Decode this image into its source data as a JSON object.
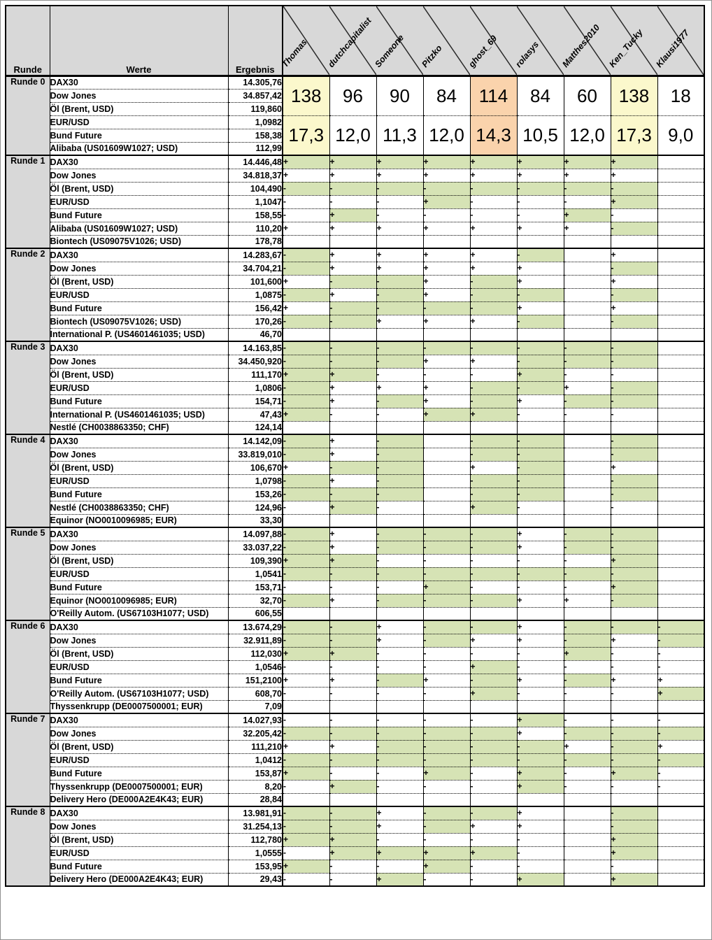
{
  "header": {
    "col_runde": "Runde",
    "col_werte": "Werte",
    "col_ergebnis": "Ergebnis",
    "players": [
      "Thomas",
      "dutchcapitalist",
      "Someone",
      "Pitzko",
      "ghost_69",
      "rolasys",
      "Matthes2010",
      "Ken_Tucky",
      "Klausi1977"
    ]
  },
  "colors": {
    "header_bg": "#d8d8d8",
    "correct_bg": "#d6e3b5",
    "leader_bg": "#fbf8cc",
    "third_bg": "#fad3ac",
    "border": "#000000"
  },
  "scores": {
    "points": [
      "138",
      "96",
      "90",
      "84",
      "114",
      "84",
      "60",
      "138",
      "18"
    ],
    "avg": [
      "17,3",
      "12,0",
      "11,3",
      "12,0",
      "14,3",
      "10,5",
      "12,0",
      "17,3",
      "9,0"
    ],
    "highlight": [
      "y",
      "",
      "",
      "",
      "o",
      "",
      "",
      "y",
      ""
    ]
  },
  "legend": {
    "plus": "+",
    "minus": "-"
  },
  "rounds": [
    {
      "label": "Runde 0",
      "has_scores": true,
      "rows": [
        [
          "DAX30",
          "14.305,76"
        ],
        [
          "Dow Jones",
          "34.857,42"
        ],
        [
          "Öl (Brent, USD)",
          "119,860"
        ],
        [
          "EUR/USD",
          "1,0982"
        ],
        [
          "Bund Future",
          "158,38"
        ],
        [
          "Alibaba (US01609W1027; USD)",
          "112,99"
        ]
      ]
    },
    {
      "label": "Runde 1",
      "rows": [
        [
          "DAX30",
          "14.446,48",
          "+g +g +g +g +g +g +g +g ."
        ],
        [
          "Dow Jones",
          "34.818,37",
          "+w +w +w +w +w +w +w +w ."
        ],
        [
          "Öl (Brent, USD)",
          "104,490",
          "-g -g -g -g -g -g -g -g ."
        ],
        [
          "EUR/USD",
          "1,1047",
          "-w -w -w +g -w -w -w +g ."
        ],
        [
          "Bund Future",
          "158,55",
          "-w +g -w -w -w -w +g -w ."
        ],
        [
          "Alibaba (US01609W1027; USD)",
          "110,20",
          "+w +w +w +w +w +w +w -g ."
        ],
        [
          "Biontech (US09075V1026; USD)",
          "178,78",
          ". . . . . . . . ."
        ]
      ]
    },
    {
      "label": "Runde 2",
      "rows": [
        [
          "DAX30",
          "14.283,67",
          "-g +w +w +w +w -g . +w ."
        ],
        [
          "Dow Jones",
          "34.704,21",
          "-g +w +w +w +w +w . -g ."
        ],
        [
          "Öl (Brent, USD)",
          "101,600",
          "+w -g -g +w -g +w . +w ."
        ],
        [
          "EUR/USD",
          "1,0875",
          "-g +w -g +w -g -g . -g ."
        ],
        [
          "Bund Future",
          "156,42",
          "+w -g -g -g -g +w . +w ."
        ],
        [
          "Biontech (US09075V1026; USD)",
          "170,26",
          "-g -g +w +w +w -g . -g ."
        ],
        [
          "International P. (US4601461035; USD)",
          "46,70",
          ". . . . . . . . ."
        ]
      ]
    },
    {
      "label": "Runde 3",
      "rows": [
        [
          "DAX30",
          "14.163,85",
          "-g -g -g -g -g -g -g -g ."
        ],
        [
          "Dow Jones",
          "34.450,920",
          "-g -g -g +w +w -g -g -g ."
        ],
        [
          "Öl (Brent, USD)",
          "111,170",
          "+g +g -w -w -w +g -w -w ."
        ],
        [
          "EUR/USD",
          "1,0806",
          "-g +w +w +w -g -g +w -g ."
        ],
        [
          "Bund Future",
          "154,71",
          "-g +w -g +w -g +w -g -g ."
        ],
        [
          "International P. (US4601461035; USD)",
          "47,43",
          "+g -w -w +g +g -w -w -w ."
        ],
        [
          "Nestlé (CH0038863350; CHF)",
          "124,14",
          ". . . . . . . . ."
        ]
      ]
    },
    {
      "label": "Runde 4",
      "rows": [
        [
          "DAX30",
          "14.142,09",
          "-g +w -g . -g -g . -g ."
        ],
        [
          "Dow Jones",
          "33.819,010",
          "-g +w -g . -g -g . -g ."
        ],
        [
          "Öl (Brent, USD)",
          "106,670",
          "+w -g -g . +w -g . +w ."
        ],
        [
          "EUR/USD",
          "1,0798",
          "-g +w -g . -g -g . -g ."
        ],
        [
          "Bund Future",
          "153,26",
          "-g -g -g . -g -g . -g ."
        ],
        [
          "Nestlé (CH0038863350; CHF)",
          "124,96",
          "-w +g -w . +g -w . -w ."
        ],
        [
          "Equinor (NO0010096985; EUR)",
          "33,30",
          ". . . . . . . . ."
        ]
      ]
    },
    {
      "label": "Runde 5",
      "rows": [
        [
          "DAX30",
          "14.097,88",
          "-g +w -g -g -g +w -g -g ."
        ],
        [
          "Dow Jones",
          "33.037,22",
          "-g +w -g -g -g +w -g -g ."
        ],
        [
          "Öl (Brent, USD)",
          "109,390",
          "+g +g -w -w -w -w -w +g ."
        ],
        [
          "EUR/USD",
          "1,0541",
          "-g -g -g -g -g -g -g -g ."
        ],
        [
          "Bund Future",
          "153,71",
          "-w -w -w +g -w -w -w +g ."
        ],
        [
          "Equinor (NO0010096985; EUR)",
          "32,70",
          "-g +w -g -g -g +w +w -g ."
        ],
        [
          "O'Reilly Autom. (US67103H1077; USD)",
          "606,55",
          ". . . . . . . . ."
        ]
      ]
    },
    {
      "label": "Runde 6",
      "rows": [
        [
          "DAX30",
          "13.674,29",
          "-g -g +w -g -g +w -g -g -g"
        ],
        [
          "Dow Jones",
          "32.911,89",
          "-g -g +w -g +w +w -g +w -g"
        ],
        [
          "Öl (Brent, USD)",
          "112,030",
          "+g +g -w -w -w -w +g -w -w"
        ],
        [
          "EUR/USD",
          "1,0546",
          "-w -w -w -w +g -w -w -w -w"
        ],
        [
          "Bund Future",
          "151,2100",
          "+w +w -g +w -g +w -g +w +w"
        ],
        [
          "O'Reilly Autom. (US67103H1077; USD)",
          "608,70",
          "-w -w -w -w +g -w -w -w +g"
        ],
        [
          "Thyssenkrupp (DE0007500001; EUR)",
          "7,09",
          ". . . . . . . . ."
        ]
      ]
    },
    {
      "label": "Runde 7",
      "rows": [
        [
          "DAX30",
          "14.027,93",
          "-w -w -w -w -w +g -w -w -w"
        ],
        [
          "Dow Jones",
          "32.205,42",
          "-g -g -g -g -g +w -g -g -g"
        ],
        [
          "Öl (Brent, USD)",
          "111,210",
          "+w +w -g -g -g -g +w -g +w"
        ],
        [
          "EUR/USD",
          "1,0412",
          "-g -g -g -g -g -g -g -g -g"
        ],
        [
          "Bund Future",
          "153,87",
          "+g -w -w +g -w +g -w +g -w"
        ],
        [
          "Thyssenkrupp (DE0007500001; EUR)",
          "8,20",
          "-w +g -w -w -w +g -w -w -w"
        ],
        [
          "Delivery Hero (DE000A2E4K43; EUR)",
          "28,84",
          ". . . . . . . . ."
        ]
      ]
    },
    {
      "label": "Runde 8",
      "rows": [
        [
          "DAX30",
          "13.981,91",
          "-g -g +w -g -g +w . -g ."
        ],
        [
          "Dow Jones",
          "31.254,13",
          "-g -g +w -g +w +w . -g ."
        ],
        [
          "Öl (Brent, USD)",
          "112,780",
          "+g +g -w -w -w -w . +g ."
        ],
        [
          "EUR/USD",
          "1,0555",
          "-w +g +g +g +g -w . +g ."
        ],
        [
          "Bund Future",
          "153,95",
          "+g -w -w +g -w -w . -w ."
        ],
        [
          "Delivery Hero (DE000A2E4K43; EUR)",
          "29,43",
          "-w -w +g -w -w +g . +g ."
        ]
      ]
    }
  ]
}
